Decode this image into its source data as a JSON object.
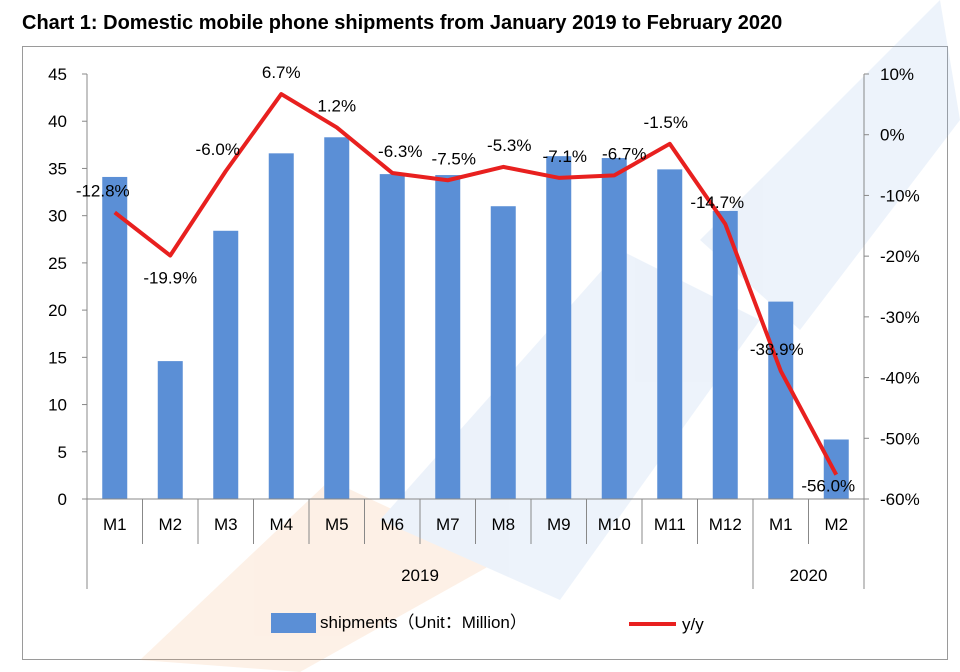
{
  "title": "Chart 1: Domestic mobile phone shipments from January 2019 to February 2020",
  "chart_data": {
    "type": "bar",
    "categories": [
      "M1",
      "M2",
      "M3",
      "M4",
      "M5",
      "M6",
      "M7",
      "M8",
      "M9",
      "M10",
      "M11",
      "M12",
      "M1",
      "M2"
    ],
    "groups": [
      {
        "label": "2019",
        "span": 12
      },
      {
        "label": "2020",
        "span": 2
      }
    ],
    "series": [
      {
        "name": "shipments（Unit：Million）",
        "type": "bar",
        "axis": "left",
        "values": [
          34.1,
          14.6,
          28.4,
          36.6,
          38.3,
          34.4,
          34.3,
          31.0,
          36.3,
          36.1,
          34.9,
          30.5,
          20.9,
          6.3
        ],
        "color": "#5b8fd6"
      },
      {
        "name": "y/y",
        "type": "line",
        "axis": "right",
        "values": [
          -12.8,
          -19.9,
          -6.0,
          6.7,
          1.2,
          -6.3,
          -7.5,
          -5.3,
          -7.1,
          -6.7,
          -1.5,
          -14.7,
          -38.9,
          -56.0
        ],
        "labels": [
          "-12.8%",
          "-19.9%",
          "-6.0%",
          "6.7%",
          "1.2%",
          "-6.3%",
          "-7.5%",
          "-5.3%",
          "-7.1%",
          "-6.7%",
          "-1.5%",
          "-14.7%",
          "-38.9%",
          "-56.0%"
        ],
        "color": "#e8201f"
      }
    ],
    "y_left": {
      "min": 0,
      "max": 45,
      "step": 5,
      "ticks": [
        "0",
        "5",
        "10",
        "15",
        "20",
        "25",
        "30",
        "35",
        "40",
        "45"
      ]
    },
    "y_right": {
      "min": -60,
      "max": 10,
      "step": 10,
      "ticks": [
        "-60%",
        "-50%",
        "-40%",
        "-30%",
        "-20%",
        "-10%",
        "0%",
        "10%"
      ]
    },
    "legend_position": "bottom",
    "grid": false
  }
}
